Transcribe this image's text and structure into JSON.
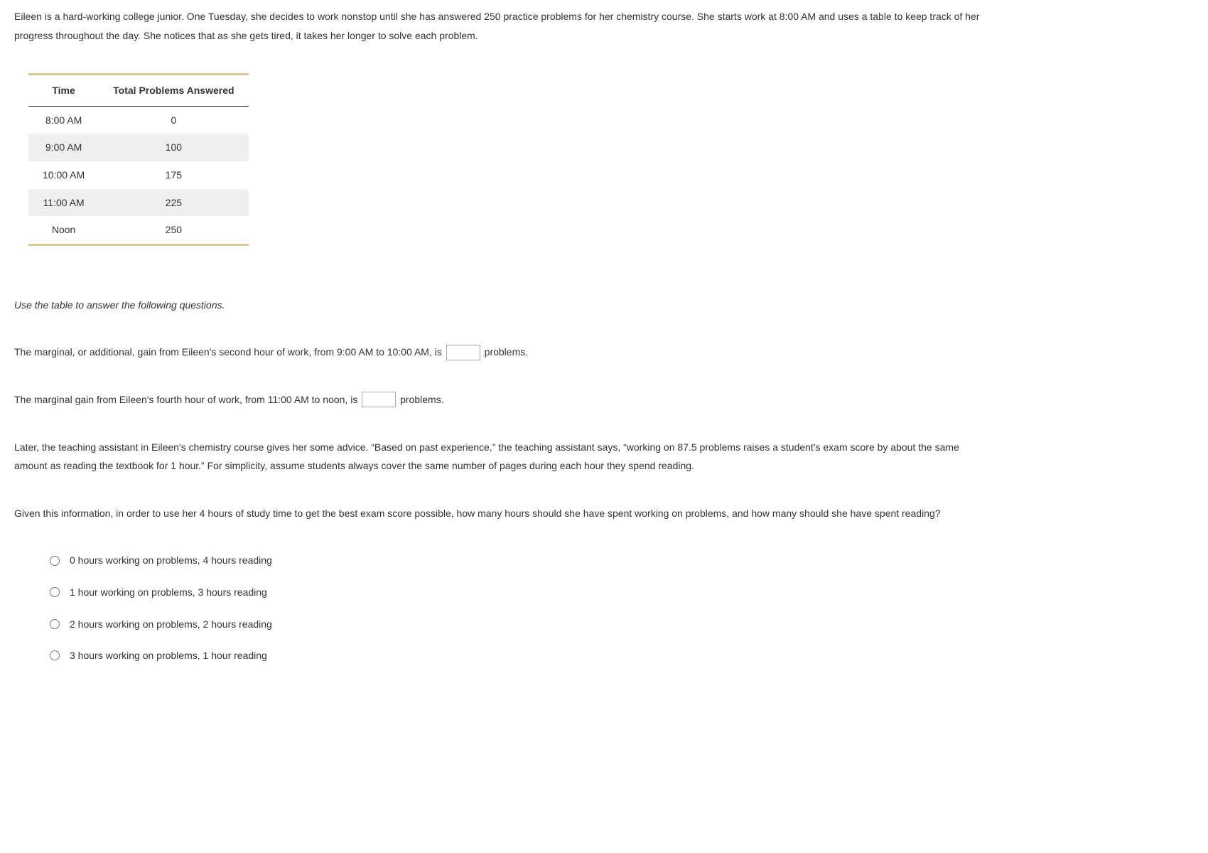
{
  "intro": "Eileen is a hard-working college junior. One Tuesday, she decides to work nonstop until she has answered 250 practice problems for her chemistry course. She starts work at 8:00 AM and uses a table to keep track of her progress throughout the day. She notices that as she gets tired, it takes her longer to solve each problem.",
  "table": {
    "columns": [
      "Time",
      "Total Problems Answered"
    ],
    "rows": [
      [
        "8:00 AM",
        "0"
      ],
      [
        "9:00 AM",
        "100"
      ],
      [
        "10:00 AM",
        "175"
      ],
      [
        "11:00 AM",
        "225"
      ],
      [
        "Noon",
        "250"
      ]
    ]
  },
  "instruction": "Use the table to answer the following questions.",
  "q1_before": "The marginal, or additional, gain from Eileen's second hour of work, from 9:00 AM to 10:00 AM, is",
  "q1_after": "problems.",
  "q2_before": "The marginal gain from Eileen's fourth hour of work, from 11:00 AM to noon, is",
  "q2_after": "problems.",
  "advice": "Later, the teaching assistant in Eileen's chemistry course gives her some advice. “Based on past experience,” the teaching assistant says, “working on 87.5 problems raises a student's exam score by about the same amount as reading the textbook for 1 hour.” For simplicity, assume students always cover the same number of pages during each hour they spend reading.",
  "q3": "Given this information, in order to use her 4 hours of study time to get the best exam score possible, how many hours should she have spent working on problems, and how many should she have spent reading?",
  "choices": [
    "0 hours working on problems, 4 hours reading",
    "1 hour working on problems, 3 hours reading",
    "2 hours working on problems, 2 hours reading",
    "3 hours working on problems, 1 hour reading"
  ]
}
